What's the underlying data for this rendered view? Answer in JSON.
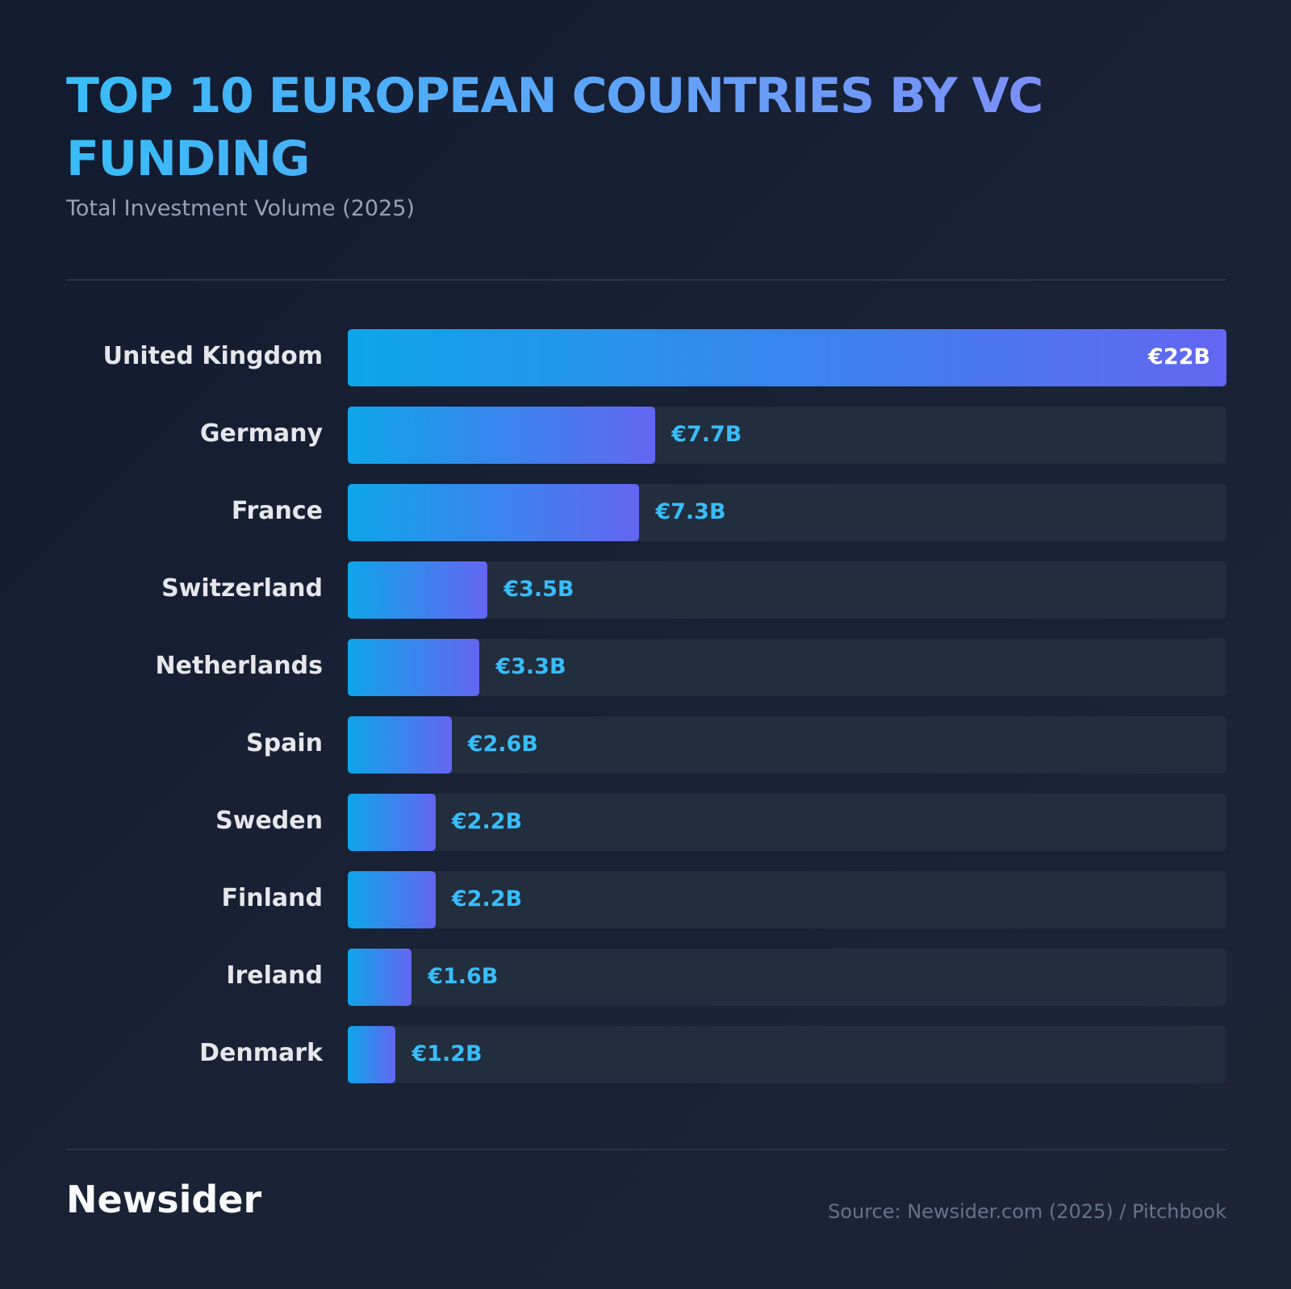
{
  "chart_data": {
    "type": "bar",
    "orientation": "horizontal",
    "title": "TOP 10 EUROPEAN COUNTRIES BY VC FUNDING",
    "subtitle": "Total Investment Volume (2025)",
    "categories": [
      "United Kingdom",
      "Germany",
      "France",
      "Switzerland",
      "Netherlands",
      "Spain",
      "Sweden",
      "Finland",
      "Ireland",
      "Denmark"
    ],
    "values": [
      22,
      7.7,
      7.3,
      3.5,
      3.3,
      2.6,
      2.2,
      2.2,
      1.6,
      1.2
    ],
    "value_labels": [
      "€22B",
      "€7.7B",
      "€7.3B",
      "€3.5B",
      "€3.3B",
      "€2.6B",
      "€2.2B",
      "€2.2B",
      "€1.6B",
      "€1.2B"
    ],
    "xlim": [
      0,
      22
    ],
    "colors": [
      "#0ea5e9",
      "#6366f1"
    ]
  },
  "footer": {
    "brand": "Newsider",
    "source": "Source: Newsider.com (2025) / Pitchbook"
  }
}
